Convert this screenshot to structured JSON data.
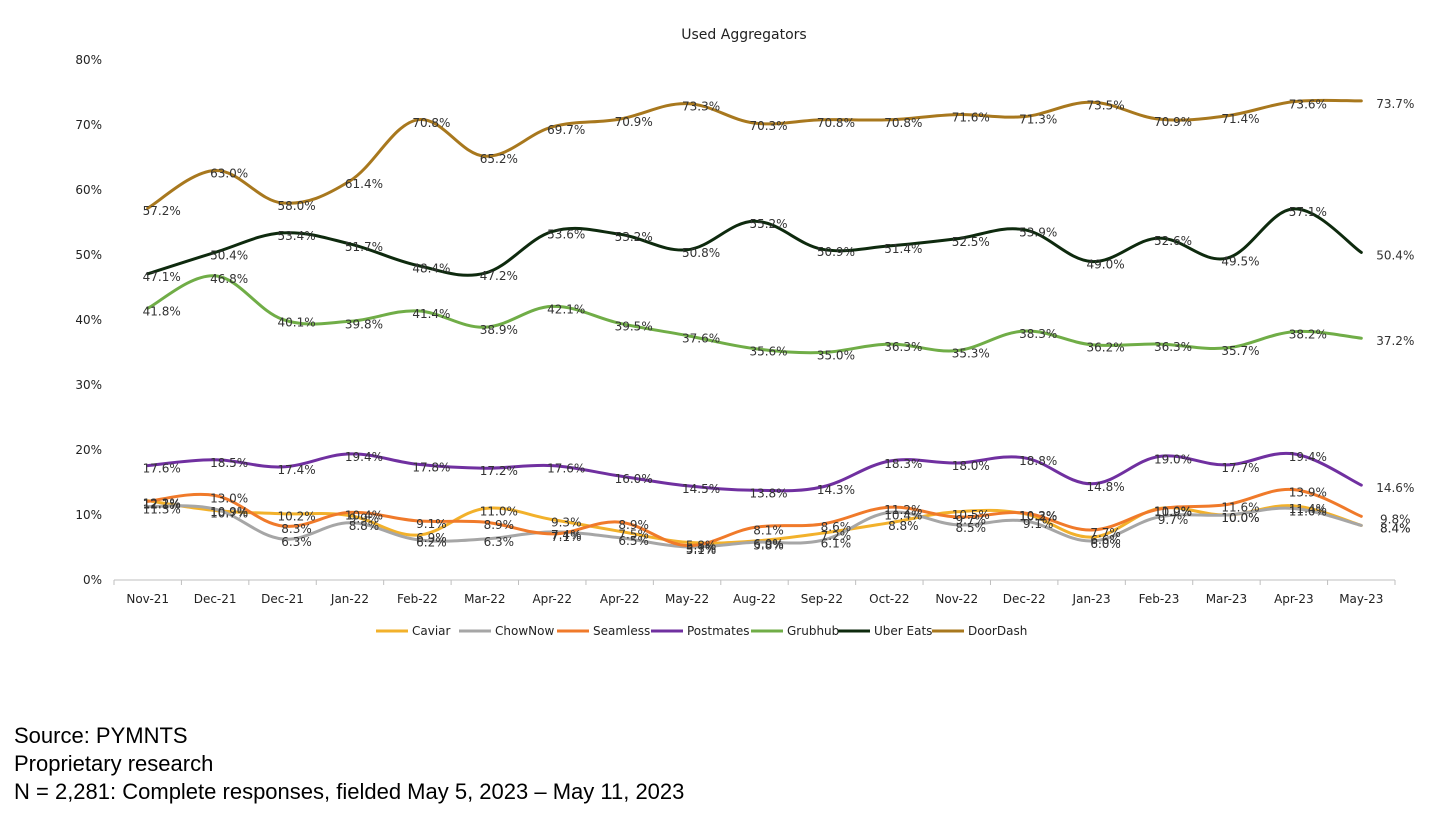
{
  "chart_data": {
    "type": "line",
    "title": "Used Aggregators",
    "xlabel": "",
    "ylabel": "",
    "ylim": [
      0,
      80
    ],
    "yticks": [
      "0%",
      "10%",
      "20%",
      "30%",
      "40%",
      "50%",
      "60%",
      "70%",
      "80%"
    ],
    "ytick_values": [
      0,
      10,
      20,
      30,
      40,
      50,
      60,
      70,
      80
    ],
    "grid": false,
    "legend": "bottom",
    "categories": [
      "Nov-21",
      "Dec-21",
      "Dec-21",
      "Jan-22",
      "Feb-22",
      "Mar-22",
      "Apr-22",
      "Apr-22",
      "May-22",
      "Aug-22",
      "Sep-22",
      "Oct-22",
      "Nov-22",
      "Dec-22",
      "Jan-23",
      "Feb-23",
      "Mar-23",
      "Apr-23",
      "May-23"
    ],
    "series": [
      {
        "name": "Caviar",
        "color": "#F2B12B",
        "values": [
          12.2,
          10.7,
          10.2,
          9.9,
          6.9,
          11.0,
          9.3,
          7.5,
          5.8,
          6.0,
          7.2,
          8.8,
          10.5,
          10.2,
          6.6,
          11.0,
          10.0,
          11.4,
          8.4
        ],
        "labels": [
          "12.2%",
          "10.7%",
          "10.2%",
          "9.9%",
          "6.9%",
          "11.0%",
          "9.3%",
          "7.5%",
          "5.8%",
          "6.0%",
          "7.2%",
          "8.8%",
          "10.5%",
          "10.2%",
          "6.6%",
          "11.0%",
          "10.0%",
          "11.4%",
          "8.4%"
        ]
      },
      {
        "name": "ChowNow",
        "color": "#A6A6A6",
        "values": [
          11.3,
          10.9,
          6.3,
          8.8,
          6.2,
          6.3,
          7.4,
          6.5,
          5.1,
          5.8,
          6.1,
          10.4,
          8.5,
          9.1,
          6.0,
          9.7,
          10.0,
          11.0,
          8.4
        ],
        "labels": [
          "11.3%",
          "10.9%",
          "6.3%",
          "8.8%",
          "6.2%",
          "6.3%",
          "7.4%",
          "6.5%",
          "5.1%",
          "5.8%",
          "6.1%",
          "10.4%",
          "8.5%",
          "9.1%",
          "6.0%",
          "9.7%",
          "10.0%",
          "11.0%",
          "8.4%"
        ]
      },
      {
        "name": "Seamless",
        "color": "#F07A2A",
        "values": [
          12.1,
          13.0,
          8.3,
          10.4,
          9.1,
          8.9,
          7.1,
          8.9,
          5.3,
          8.1,
          8.6,
          11.2,
          9.7,
          10.3,
          7.7,
          10.9,
          11.6,
          13.9,
          9.8
        ],
        "labels": [
          "12.1%",
          "13.0%",
          "8.3%",
          "10.4%",
          "9.1%",
          "8.9%",
          "7.1%",
          "8.9%",
          "5.3%",
          "8.1%",
          "8.6%",
          "11.2%",
          "9.7%",
          "10.3%",
          "7.7%",
          "10.9%",
          "11.6%",
          "13.9%",
          "9.8%"
        ]
      },
      {
        "name": "Postmates",
        "color": "#7030A0",
        "values": [
          17.6,
          18.5,
          17.4,
          19.4,
          17.8,
          17.2,
          17.6,
          16.0,
          14.5,
          13.8,
          14.3,
          18.3,
          18.0,
          18.8,
          14.8,
          19.0,
          17.7,
          19.4,
          14.6
        ],
        "labels": [
          "17.6%",
          "18.5%",
          "17.4%",
          "19.4%",
          "17.8%",
          "17.2%",
          "17.6%",
          "16.0%",
          "14.5%",
          "13.8%",
          "14.3%",
          "18.3%",
          "18.0%",
          "18.8%",
          "14.8%",
          "19.0%",
          "17.7%",
          "19.4%",
          "14.6%"
        ]
      },
      {
        "name": "Grubhub",
        "color": "#70AD47",
        "values": [
          41.8,
          46.8,
          40.1,
          39.8,
          41.4,
          38.9,
          42.1,
          39.5,
          37.6,
          35.6,
          35.0,
          36.3,
          35.3,
          38.3,
          36.2,
          36.3,
          35.7,
          38.2,
          37.2
        ],
        "labels": [
          "41.8%",
          "46.8%",
          "40.1%",
          "39.8%",
          "41.4%",
          "38.9%",
          "42.1%",
          "39.5%",
          "37.6%",
          "35.6%",
          "35.0%",
          "36.3%",
          "35.3%",
          "38.3%",
          "36.2%",
          "36.3%",
          "35.7%",
          "38.2%",
          "37.2%"
        ]
      },
      {
        "name": "Uber Eats",
        "color": "#0E2A0E",
        "values": [
          47.1,
          50.4,
          53.4,
          51.7,
          48.4,
          47.2,
          53.6,
          53.2,
          50.8,
          55.2,
          50.9,
          51.4,
          52.5,
          53.9,
          49.0,
          52.6,
          49.5,
          57.1,
          50.4
        ],
        "labels": [
          "47.1%",
          "50.4%",
          "53.4%",
          "51.7%",
          "48.4%",
          "47.2%",
          "53.6%",
          "53.2%",
          "50.8%",
          "55.2%",
          "50.9%",
          "51.4%",
          "52.5%",
          "53.9%",
          "49.0%",
          "52.6%",
          "49.5%",
          "57.1%",
          "50.4%"
        ]
      },
      {
        "name": "DoorDash",
        "color": "#A8781E",
        "values": [
          57.2,
          63.0,
          58.0,
          61.4,
          70.8,
          65.2,
          69.7,
          70.9,
          73.3,
          70.3,
          70.8,
          70.8,
          71.6,
          71.3,
          73.5,
          70.9,
          71.4,
          73.6,
          73.7
        ],
        "labels": [
          "57.2%",
          "63.0%",
          "58.0%",
          "61.4%",
          "70.8%",
          "65.2%",
          "69.7%",
          "70.9%",
          "73.3%",
          "70.3%",
          "70.8%",
          "70.8%",
          "71.6%",
          "71.3%",
          "73.5%",
          "70.9%",
          "71.4%",
          "73.6%",
          "73.7%"
        ]
      }
    ]
  },
  "source": {
    "line1": "Source: PYMNTS",
    "line2": "Proprietary research",
    "line3": "N = 2,281: Complete responses, fielded May 5, 2023 – May 11, 2023"
  }
}
